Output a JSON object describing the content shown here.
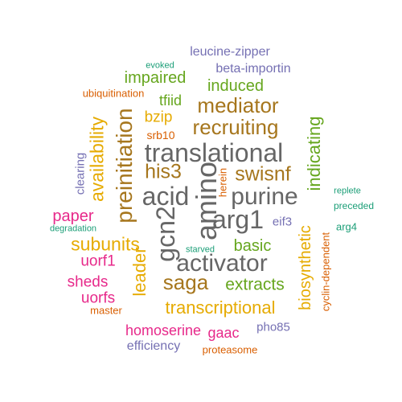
{
  "colors": {
    "teal": "#1b9e77",
    "orange": "#d95f02",
    "purple": "#7570b3",
    "magenta": "#e7298a",
    "green": "#66a61e",
    "gold": "#e6ab02",
    "brown": "#a6761d",
    "gray": "#666666"
  },
  "words": [
    {
      "text": "leucine-zipper",
      "color": "purple"
    },
    {
      "text": "evoked",
      "color": "teal"
    },
    {
      "text": "beta-importin",
      "color": "purple"
    },
    {
      "text": "impaired",
      "color": "green"
    },
    {
      "text": "induced",
      "color": "green"
    },
    {
      "text": "ubiquitination",
      "color": "orange"
    },
    {
      "text": "tfiid",
      "color": "green"
    },
    {
      "text": "mediator",
      "color": "brown"
    },
    {
      "text": "bzip",
      "color": "gold"
    },
    {
      "text": "recruiting",
      "color": "brown"
    },
    {
      "text": "srb10",
      "color": "orange"
    },
    {
      "text": "translational",
      "color": "gray"
    },
    {
      "text": "availability",
      "color": "gold"
    },
    {
      "text": "preinitiation",
      "color": "brown"
    },
    {
      "text": "indicating",
      "color": "green"
    },
    {
      "text": "his3",
      "color": "brown"
    },
    {
      "text": "swisnf",
      "color": "brown"
    },
    {
      "text": "clearing",
      "color": "purple"
    },
    {
      "text": "herein",
      "color": "orange"
    },
    {
      "text": "acid",
      "color": "gray"
    },
    {
      "text": "purine",
      "color": "gray"
    },
    {
      "text": "replete",
      "color": "teal"
    },
    {
      "text": "preceded",
      "color": "teal"
    },
    {
      "text": "amino",
      "color": "gray"
    },
    {
      "text": "gcn2",
      "color": "gray"
    },
    {
      "text": "paper",
      "color": "magenta"
    },
    {
      "text": "arg1",
      "color": "gray"
    },
    {
      "text": "eif3",
      "color": "purple"
    },
    {
      "text": "arg4",
      "color": "teal"
    },
    {
      "text": "degradation",
      "color": "teal"
    },
    {
      "text": "biosynthetic",
      "color": "gold"
    },
    {
      "text": "cyclin-dependent",
      "color": "orange"
    },
    {
      "text": "subunits",
      "color": "gold"
    },
    {
      "text": "basic",
      "color": "green"
    },
    {
      "text": "starved",
      "color": "teal"
    },
    {
      "text": "uorf1",
      "color": "magenta"
    },
    {
      "text": "leader",
      "color": "gold"
    },
    {
      "text": "activator",
      "color": "gray"
    },
    {
      "text": "sheds",
      "color": "magenta"
    },
    {
      "text": "saga",
      "color": "brown"
    },
    {
      "text": "extracts",
      "color": "green"
    },
    {
      "text": "uorfs",
      "color": "magenta"
    },
    {
      "text": "master",
      "color": "orange"
    },
    {
      "text": "transcriptional",
      "color": "gold"
    },
    {
      "text": "homoserine",
      "color": "magenta"
    },
    {
      "text": "gaac",
      "color": "magenta"
    },
    {
      "text": "pho85",
      "color": "purple"
    },
    {
      "text": "efficiency",
      "color": "purple"
    },
    {
      "text": "proteasome",
      "color": "orange"
    }
  ]
}
